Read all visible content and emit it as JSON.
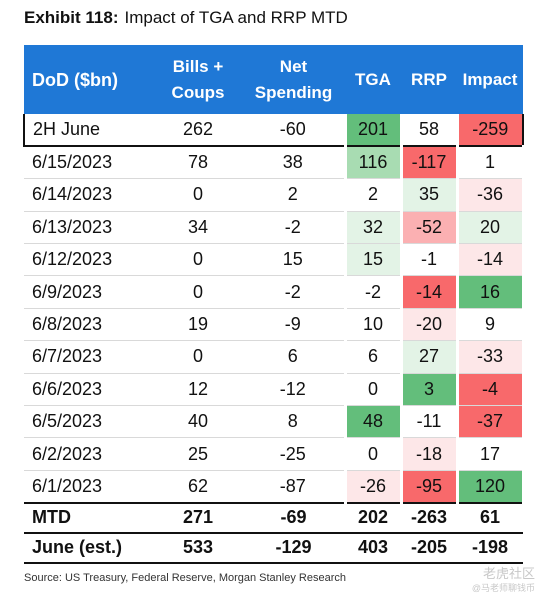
{
  "exhibit_label": "Exhibit 118:",
  "title": "Impact of TGA and RRP MTD",
  "columns": [
    "DoD ($bn)",
    "Bills + Coups",
    "Net Spending",
    "TGA",
    "RRP",
    "Impact"
  ],
  "rows": [
    {
      "label": "2H June",
      "bills": "262",
      "net": "-60",
      "tga": "201",
      "rrp": "58",
      "impact": "-259"
    },
    {
      "label": "6/15/2023",
      "bills": "78",
      "net": "38",
      "tga": "116",
      "rrp": "-117",
      "impact": "1"
    },
    {
      "label": "6/14/2023",
      "bills": "0",
      "net": "2",
      "tga": "2",
      "rrp": "35",
      "impact": "-36"
    },
    {
      "label": "6/13/2023",
      "bills": "34",
      "net": "-2",
      "tga": "32",
      "rrp": "-52",
      "impact": "20"
    },
    {
      "label": "6/12/2023",
      "bills": "0",
      "net": "15",
      "tga": "15",
      "rrp": "-1",
      "impact": "-14"
    },
    {
      "label": "6/9/2023",
      "bills": "0",
      "net": "-2",
      "tga": "-2",
      "rrp": "-14",
      "impact": "16"
    },
    {
      "label": "6/8/2023",
      "bills": "19",
      "net": "-9",
      "tga": "10",
      "rrp": "-20",
      "impact": "9"
    },
    {
      "label": "6/7/2023",
      "bills": "0",
      "net": "6",
      "tga": "6",
      "rrp": "27",
      "impact": "-33"
    },
    {
      "label": "6/6/2023",
      "bills": "12",
      "net": "-12",
      "tga": "0",
      "rrp": "3",
      "impact": "-4"
    },
    {
      "label": "6/5/2023",
      "bills": "40",
      "net": "8",
      "tga": "48",
      "rrp": "-11",
      "impact": "-37"
    },
    {
      "label": "6/2/2023",
      "bills": "25",
      "net": "-25",
      "tga": "0",
      "rrp": "-18",
      "impact": "17"
    },
    {
      "label": "6/1/2023",
      "bills": "62",
      "net": "-87",
      "tga": "-26",
      "rrp": "-95",
      "impact": "120"
    }
  ],
  "totals": [
    {
      "label": "MTD",
      "bills": "271",
      "net": "-69",
      "tga": "202",
      "rrp": "-263",
      "impact": "61"
    },
    {
      "label": "June (est.)",
      "bills": "533",
      "net": "-129",
      "tga": "403",
      "rrp": "-205",
      "impact": "-198"
    }
  ],
  "source": "Source: US Treasury, Federal Reserve, Morgan Stanley Research",
  "watermark": "老虎社区",
  "watermark_sub": "@马老师聊钱币",
  "colors": {
    "header_bg": "#1f78d6",
    "strong_green": "#63be7b",
    "mid_green": "#a8dcb2",
    "light_green": "#e3f3e6",
    "strong_red": "#f8696b",
    "mid_red": "#fbb0b2",
    "light_red": "#fde7e8",
    "neutral": "#ffffff"
  },
  "cell_colors": [
    {
      "tga": "strong_green",
      "rrp": "neutral",
      "impact": "strong_red"
    },
    {
      "tga": "mid_green",
      "rrp": "strong_red",
      "impact": "neutral"
    },
    {
      "tga": "neutral",
      "rrp": "light_green",
      "impact": "light_red"
    },
    {
      "tga": "light_green",
      "rrp": "mid_red",
      "impact": "light_green"
    },
    {
      "tga": "light_green",
      "rrp": "neutral",
      "impact": "light_red"
    },
    {
      "tga": "neutral",
      "rrp": "strong_red",
      "impact": "strong_green"
    },
    {
      "tga": "neutral",
      "rrp": "light_red",
      "impact": "neutral"
    },
    {
      "tga": "neutral",
      "rrp": "light_green",
      "impact": "light_red"
    },
    {
      "tga": "neutral",
      "rrp": "strong_green",
      "impact": "strong_red"
    },
    {
      "tga": "strong_green",
      "rrp": "neutral",
      "impact": "strong_red"
    },
    {
      "tga": "neutral",
      "rrp": "light_red",
      "impact": "neutral"
    },
    {
      "tga": "light_red",
      "rrp": "strong_red",
      "impact": "strong_green"
    }
  ]
}
